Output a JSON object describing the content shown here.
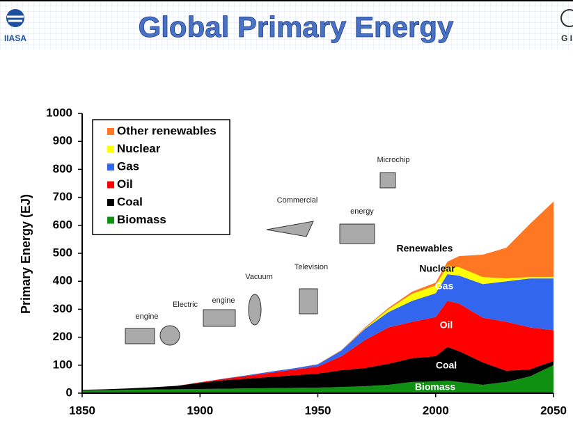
{
  "header": {
    "logo_left": "IIASA",
    "logo_right": "G I"
  },
  "chart_data": {
    "type": "stacked-area",
    "title": "Global Primary Energy",
    "y_label": "Primary Energy (EJ)",
    "x": [
      1850,
      1860,
      1870,
      1880,
      1890,
      1900,
      1910,
      1920,
      1930,
      1940,
      1950,
      1960,
      1970,
      1980,
      1990,
      2000,
      2005,
      2010,
      2020,
      2030,
      2040,
      2050
    ],
    "series": [
      {
        "name": "Biomass",
        "color": "#109010",
        "values": [
          10,
          11,
          12,
          13,
          14,
          15,
          16,
          17,
          18,
          19,
          20,
          22,
          25,
          30,
          40,
          42,
          45,
          40,
          30,
          40,
          60,
          100
        ]
      },
      {
        "name": "Coal",
        "color": "#000000",
        "values": [
          2,
          3,
          5,
          8,
          12,
          22,
          30,
          35,
          40,
          45,
          50,
          60,
          65,
          75,
          85,
          90,
          120,
          110,
          80,
          40,
          25,
          15
        ]
      },
      {
        "name": "Oil",
        "color": "#ff0000",
        "values": [
          0,
          0,
          0,
          0,
          0,
          2,
          5,
          10,
          15,
          20,
          25,
          50,
          100,
          130,
          130,
          140,
          165,
          170,
          160,
          175,
          150,
          110
        ]
      },
      {
        "name": "Gas",
        "color": "#3366ee",
        "values": [
          0,
          0,
          0,
          0,
          0,
          0,
          1,
          2,
          4,
          5,
          8,
          20,
          40,
          55,
          75,
          85,
          95,
          100,
          120,
          145,
          175,
          185
        ]
      },
      {
        "name": "Nuclear",
        "color": "#ffff00",
        "values": [
          0,
          0,
          0,
          0,
          0,
          0,
          0,
          0,
          0,
          0,
          0,
          0,
          2,
          10,
          25,
          28,
          30,
          30,
          25,
          10,
          5,
          5
        ]
      },
      {
        "name": "Other renewables",
        "color": "#ff7722",
        "values": [
          0,
          0,
          0,
          0,
          0,
          0,
          0,
          0,
          0,
          0,
          1,
          2,
          3,
          5,
          8,
          10,
          15,
          40,
          80,
          110,
          190,
          270
        ]
      }
    ],
    "xlim": [
      1850,
      2050
    ],
    "ylim": [
      0,
      1000
    ],
    "xticks": [
      1850,
      1900,
      1950,
      2000,
      2050
    ],
    "yticks": [
      0,
      100,
      200,
      300,
      400,
      500,
      600,
      700,
      800,
      900,
      1000
    ],
    "legend": "upper left",
    "annotations": [
      "Renewables",
      "Nuclear",
      "Gas",
      "Oil",
      "Coal",
      "Biomass"
    ],
    "icon_labels": [
      "engine",
      "Electric",
      "engine",
      "Vacuum",
      "Commercial",
      "Television",
      "energy",
      "Microchip"
    ]
  }
}
